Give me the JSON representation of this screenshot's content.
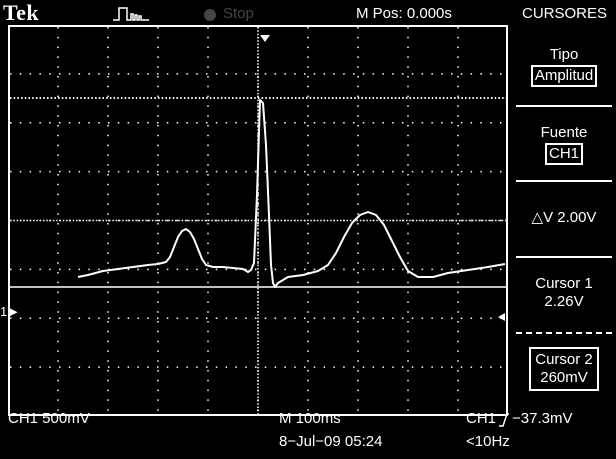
{
  "header": {
    "brand": "Tek",
    "run_state": "Stop",
    "m_pos": "M Pos: 0.000s",
    "menu_title": "CURSORES"
  },
  "side_panel": {
    "tipo_label": "Tipo",
    "tipo_value": "Amplitud",
    "fuente_label": "Fuente",
    "fuente_value": "CH1",
    "delta_v": "△V 2.00V",
    "cursor1_label": "Cursor 1",
    "cursor1_value": "2.26V",
    "cursor2_label": "Cursor 2",
    "cursor2_value": "260mV"
  },
  "footer": {
    "ch1_scale": "CH1  500mV",
    "timebase": "M 100ms",
    "trigger_source": "CH1",
    "trigger_level": "−37.3mV",
    "date_time": "8−Jul−09 05:24",
    "trigger_freq": "<10Hz"
  },
  "channel_marker": "1",
  "colors": {
    "background": "#000000",
    "trace": "#ffffff",
    "grid": "#ffffff",
    "inactive": "#444444"
  },
  "icons": {
    "trigger": "pulse-trigger-icon",
    "run": "run-state-dot-icon",
    "edge": "rising-edge-icon",
    "channel_ground": "arrow-right-icon",
    "trigger_level": "arrow-left-icon"
  }
}
